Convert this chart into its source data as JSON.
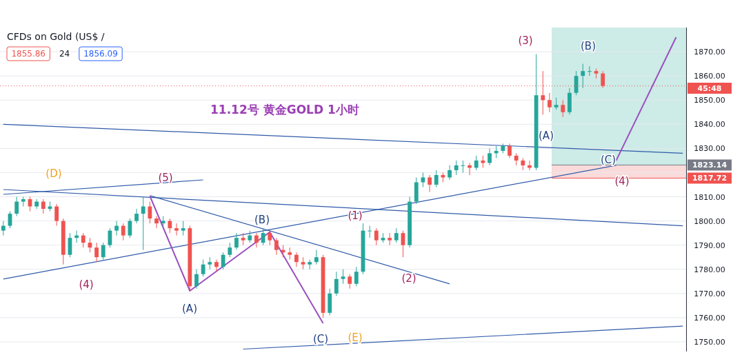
{
  "chart_data": {
    "type": "candlestick",
    "title": "11.12号  黄金GOLD 1小时",
    "subtitle": "CFDs on Gold (US$ /",
    "categories": [
      null,
      null,
      null,
      null,
      null,
      null,
      null,
      null,
      null,
      null,
      null,
      null,
      null,
      null,
      null,
      null,
      null,
      null,
      null,
      null,
      null,
      null,
      null,
      null,
      null,
      null,
      null,
      null,
      null,
      null,
      null,
      null,
      null,
      null,
      null,
      null,
      null,
      null,
      null,
      null,
      null,
      null,
      null,
      null,
      null,
      null,
      null,
      null,
      null,
      null,
      null,
      null,
      null,
      null,
      null,
      null,
      null,
      null,
      null,
      null,
      null,
      null,
      null,
      null,
      null,
      null,
      null,
      null,
      null,
      null,
      null,
      null,
      null,
      null,
      null,
      null,
      null,
      null,
      null,
      null,
      null,
      null,
      null,
      null,
      null,
      null,
      null,
      null,
      null,
      null,
      null,
      null,
      null,
      null,
      null,
      null,
      null,
      null,
      null,
      null,
      null,
      null,
      null
    ],
    "ohlc": [
      [
        1796,
        1800,
        1794,
        1798
      ],
      [
        1798,
        1804,
        1797,
        1803
      ],
      [
        1803,
        1810,
        1802,
        1808
      ],
      [
        1808,
        1810,
        1806,
        1809
      ],
      [
        1809,
        1810,
        1804,
        1806
      ],
      [
        1806,
        1809,
        1805,
        1808
      ],
      [
        1808,
        1809,
        1803,
        1805
      ],
      [
        1805,
        1808,
        1804,
        1806
      ],
      [
        1806,
        1807,
        1798,
        1800
      ],
      [
        1800,
        1801,
        1782,
        1786
      ],
      [
        1786,
        1795,
        1785,
        1793
      ],
      [
        1793,
        1796,
        1791,
        1794
      ],
      [
        1794,
        1795,
        1789,
        1791
      ],
      [
        1791,
        1793,
        1787,
        1789
      ],
      [
        1789,
        1791,
        1783,
        1785
      ],
      [
        1785,
        1791,
        1784,
        1790
      ],
      [
        1790,
        1797,
        1789,
        1796
      ],
      [
        1796,
        1800,
        1794,
        1798
      ],
      [
        1798,
        1799,
        1792,
        1794
      ],
      [
        1794,
        1801,
        1793,
        1800
      ],
      [
        1800,
        1805,
        1799,
        1803
      ],
      [
        1803,
        1810,
        1788,
        1806
      ],
      [
        1806,
        1808,
        1799,
        1801
      ],
      [
        1801,
        1802,
        1797,
        1799
      ],
      [
        1799,
        1802,
        1797,
        1800
      ],
      [
        1800,
        1801,
        1795,
        1797
      ],
      [
        1797,
        1799,
        1794,
        1796
      ],
      [
        1796,
        1800,
        1794,
        1797
      ],
      [
        1797,
        1798,
        1771,
        1773
      ],
      [
        1773,
        1780,
        1772,
        1778
      ],
      [
        1778,
        1784,
        1777,
        1782
      ],
      [
        1782,
        1785,
        1780,
        1783
      ],
      [
        1783,
        1784,
        1779,
        1781
      ],
      [
        1781,
        1787,
        1780,
        1786
      ],
      [
        1786,
        1791,
        1785,
        1789
      ],
      [
        1789,
        1795,
        1788,
        1793
      ],
      [
        1793,
        1795,
        1790,
        1792
      ],
      [
        1792,
        1796,
        1791,
        1794
      ],
      [
        1794,
        1795,
        1789,
        1791
      ],
      [
        1791,
        1797,
        1790,
        1795
      ],
      [
        1795,
        1796,
        1790,
        1792
      ],
      [
        1792,
        1793,
        1786,
        1788
      ],
      [
        1788,
        1790,
        1785,
        1787
      ],
      [
        1787,
        1789,
        1784,
        1786
      ],
      [
        1786,
        1787,
        1781,
        1783
      ],
      [
        1783,
        1785,
        1780,
        1782
      ],
      [
        1782,
        1784,
        1780,
        1783
      ],
      [
        1783,
        1788,
        1782,
        1785
      ],
      [
        1785,
        1786,
        1760,
        1762
      ],
      [
        1762,
        1772,
        1761,
        1770
      ],
      [
        1770,
        1779,
        1769,
        1776
      ],
      [
        1776,
        1780,
        1774,
        1777
      ],
      [
        1777,
        1778,
        1772,
        1774
      ],
      [
        1774,
        1781,
        1773,
        1779
      ],
      [
        1779,
        1799,
        1778,
        1796
      ],
      [
        1796,
        1798,
        1793,
        1796
      ],
      [
        1796,
        1797,
        1790,
        1792
      ],
      [
        1792,
        1795,
        1791,
        1793
      ],
      [
        1793,
        1795,
        1790,
        1792
      ],
      [
        1792,
        1797,
        1791,
        1795
      ],
      [
        1795,
        1796,
        1785,
        1790
      ],
      [
        1790,
        1810,
        1789,
        1808
      ],
      [
        1808,
        1818,
        1807,
        1816
      ],
      [
        1816,
        1820,
        1814,
        1818
      ],
      [
        1818,
        1819,
        1812,
        1815
      ],
      [
        1815,
        1821,
        1814,
        1819
      ],
      [
        1819,
        1820,
        1816,
        1818
      ],
      [
        1818,
        1823,
        1817,
        1821
      ],
      [
        1821,
        1825,
        1819,
        1823
      ],
      [
        1823,
        1825,
        1820,
        1823
      ],
      [
        1823,
        1824,
        1819,
        1822
      ],
      [
        1822,
        1827,
        1821,
        1825
      ],
      [
        1825,
        1827,
        1822,
        1824
      ],
      [
        1824,
        1830,
        1823,
        1828
      ],
      [
        1828,
        1831,
        1826,
        1829
      ],
      [
        1829,
        1832,
        1828,
        1831
      ],
      [
        1831,
        1832,
        1826,
        1827
      ],
      [
        1827,
        1828,
        1823,
        1825
      ],
      [
        1825,
        1826,
        1821,
        1823
      ],
      [
        1823,
        1825,
        1821,
        1822
      ],
      [
        1822,
        1869,
        1821,
        1852
      ],
      [
        1852,
        1862,
        1844,
        1850
      ],
      [
        1850,
        1853,
        1845,
        1847
      ],
      [
        1847,
        1851,
        1846,
        1848
      ],
      [
        1848,
        1850,
        1843,
        1845
      ],
      [
        1845,
        1855,
        1844,
        1853
      ],
      [
        1853,
        1862,
        1852,
        1860
      ],
      [
        1860,
        1865,
        1855,
        1862
      ],
      [
        1862,
        1864,
        1860,
        1862
      ],
      [
        1862,
        1863,
        1859,
        1861
      ],
      [
        1861,
        1862,
        1855,
        1855.86
      ],
      null,
      null,
      null,
      null,
      null,
      null,
      null,
      null,
      null,
      null,
      null,
      null
    ],
    "ylim": [
      1746,
      1880
    ],
    "yticks": [
      {
        "value": 1750,
        "label": "1750.00"
      },
      {
        "value": 1760,
        "label": "1760.00"
      },
      {
        "value": 1770,
        "label": "1770.00"
      },
      {
        "value": 1780,
        "label": "1780.00"
      },
      {
        "value": 1790,
        "label": "1790.00"
      },
      {
        "value": 1800,
        "label": "1800.00"
      },
      {
        "value": 1810,
        "label": "1810.00"
      },
      {
        "value": 1820,
        "label": null
      },
      {
        "value": 1830,
        "label": "1830.00"
      },
      {
        "value": 1840,
        "label": "1840.00"
      },
      {
        "value": 1850,
        "label": "1850.00"
      },
      {
        "value": 1860,
        "label": "1860.00"
      },
      {
        "value": 1870,
        "label": "1870.00"
      }
    ],
    "tick_labels": "y",
    "grid": "y",
    "series": [
      {
        "type": "line",
        "color": "#2f5aa8",
        "values": [
          1840,
          null,
          null,
          null,
          null,
          null,
          null,
          null,
          null,
          null,
          null,
          null,
          null,
          null,
          null,
          null,
          null,
          null,
          null,
          null,
          null,
          null,
          null,
          null,
          null,
          null,
          null,
          null,
          null,
          null,
          null,
          null,
          null,
          null,
          null,
          null,
          null,
          null,
          null,
          null,
          null,
          null,
          null,
          null,
          null,
          null,
          null,
          null,
          null,
          null,
          null,
          null,
          null,
          null,
          null,
          null,
          null,
          null,
          null,
          null,
          null,
          null,
          null,
          null,
          null,
          null,
          null,
          null,
          null,
          null,
          null,
          null,
          null,
          null,
          null,
          null,
          null,
          null,
          null,
          null,
          null,
          null,
          null,
          null,
          null,
          null,
          null,
          null,
          null,
          null,
          null,
          null,
          null,
          null,
          null,
          null,
          null,
          null,
          null,
          null,
          null,
          null,
          1828
        ]
      },
      {
        "type": "line",
        "color": "#2f5aa8",
        "values": [
          1813,
          null,
          null,
          null,
          null,
          null,
          null,
          null,
          null,
          null,
          null,
          null,
          null,
          null,
          null,
          null,
          null,
          null,
          null,
          null,
          null,
          null,
          null,
          null,
          null,
          null,
          null,
          null,
          null,
          null,
          null,
          null,
          null,
          null,
          null,
          null,
          null,
          null,
          null,
          null,
          null,
          null,
          null,
          null,
          null,
          null,
          null,
          null,
          null,
          null,
          null,
          null,
          null,
          null,
          null,
          null,
          null,
          null,
          null,
          null,
          null,
          null,
          null,
          null,
          null,
          null,
          null,
          null,
          null,
          null,
          null,
          null,
          null,
          null,
          null,
          null,
          null,
          null,
          null,
          null,
          null,
          null,
          null,
          null,
          null,
          null,
          null,
          null,
          null,
          null,
          null,
          null,
          null,
          null,
          null,
          null,
          null,
          null,
          null,
          null,
          null,
          null,
          1798
        ]
      },
      {
        "type": "line",
        "color": "#2f5aa8",
        "values": [
          1811,
          null,
          null,
          null,
          null,
          null,
          null,
          null,
          null,
          null,
          null,
          null,
          null,
          null,
          null,
          null,
          null,
          null,
          null,
          null,
          null,
          null,
          null,
          null,
          null,
          null,
          null,
          null,
          null,
          null,
          1817,
          null,
          null,
          null,
          null,
          null,
          null,
          null,
          null,
          null,
          null,
          null,
          null,
          null,
          null,
          null,
          null,
          null,
          null,
          null,
          null,
          null,
          null,
          null,
          null,
          null,
          null,
          null,
          null,
          null,
          null,
          null,
          null,
          null,
          null,
          null,
          null,
          null,
          null,
          null,
          null,
          null,
          null,
          null,
          null,
          null,
          null,
          null,
          null,
          null,
          null,
          null,
          null,
          null,
          null,
          null,
          null,
          null,
          null,
          null,
          null,
          null,
          null,
          null,
          null,
          null,
          null,
          null,
          null,
          null,
          null,
          null,
          null
        ]
      },
      {
        "type": "line",
        "color": "#2f5aa8",
        "values": [
          1776,
          null,
          null,
          null,
          null,
          null,
          null,
          null,
          null,
          null,
          null,
          null,
          null,
          null,
          null,
          null,
          null,
          null,
          null,
          null,
          null,
          null,
          null,
          null,
          null,
          null,
          null,
          null,
          null,
          null,
          null,
          null,
          null,
          null,
          null,
          null,
          null,
          null,
          null,
          null,
          null,
          null,
          null,
          null,
          null,
          null,
          null,
          null,
          null,
          null,
          null,
          null,
          null,
          null,
          null,
          null,
          null,
          null,
          null,
          null,
          null,
          null,
          null,
          null,
          null,
          null,
          null,
          null,
          null,
          null,
          null,
          null,
          null,
          null,
          null,
          null,
          null,
          null,
          null,
          null,
          null,
          null,
          null,
          null,
          null,
          null,
          null,
          null,
          null,
          null,
          null,
          null,
          1823,
          null,
          null,
          null,
          null,
          null,
          null,
          null,
          null,
          null,
          null
        ]
      },
      {
        "type": "line",
        "color": "#2f5aa8",
        "values": [
          null,
          null,
          null,
          null,
          null,
          null,
          null,
          null,
          null,
          null,
          null,
          null,
          null,
          null,
          null,
          null,
          null,
          null,
          null,
          null,
          null,
          null,
          1810.5,
          null,
          null,
          null,
          null,
          null,
          null,
          null,
          null,
          null,
          null,
          null,
          null,
          null,
          null,
          null,
          null,
          null,
          null,
          null,
          null,
          null,
          null,
          null,
          null,
          null,
          null,
          null,
          null,
          null,
          null,
          null,
          null,
          null,
          null,
          null,
          null,
          null,
          null,
          null,
          null,
          null,
          null,
          null,
          null,
          1774,
          null,
          null,
          null,
          null,
          null,
          null,
          null,
          null,
          null,
          null,
          null,
          null,
          null,
          null,
          null,
          null,
          null,
          null,
          null,
          null,
          null,
          null,
          null,
          null,
          null,
          null,
          null,
          null,
          null,
          null,
          null,
          null,
          null,
          null,
          null
        ]
      },
      {
        "type": "line",
        "color": "#2f5aa8",
        "values": [
          null,
          null,
          null,
          null,
          null,
          null,
          null,
          null,
          null,
          null,
          null,
          null,
          null,
          null,
          null,
          null,
          null,
          null,
          null,
          null,
          null,
          null,
          null,
          null,
          null,
          null,
          null,
          null,
          null,
          null,
          null,
          null,
          null,
          null,
          null,
          null,
          1747,
          null,
          null,
          null,
          null,
          null,
          null,
          null,
          null,
          null,
          null,
          null,
          null,
          null,
          null,
          null,
          null,
          null,
          null,
          null,
          null,
          null,
          null,
          null,
          null,
          null,
          null,
          null,
          null,
          null,
          null,
          null,
          null,
          null,
          null,
          null,
          null,
          null,
          null,
          null,
          null,
          null,
          null,
          null,
          null,
          null,
          null,
          null,
          null,
          null,
          null,
          null,
          null,
          null,
          null,
          null,
          null,
          null,
          null,
          null,
          null,
          null,
          null,
          null,
          null,
          null,
          1756.5
        ]
      },
      {
        "type": "line",
        "color": "#9b4fc0",
        "values": [
          null,
          null,
          null,
          null,
          null,
          null,
          null,
          null,
          null,
          null,
          null,
          null,
          null,
          null,
          null,
          null,
          null,
          null,
          null,
          null,
          null,
          null,
          1810.3,
          null,
          null,
          null,
          null,
          null,
          1771.1,
          null,
          null,
          null,
          null,
          null,
          null,
          null,
          null,
          null,
          null,
          null,
          1795.4,
          null,
          null,
          null,
          null,
          null,
          null,
          null,
          1757.7,
          null,
          null,
          null,
          null,
          null,
          null,
          null,
          null,
          null,
          null,
          null,
          null,
          null,
          null,
          null,
          null,
          null,
          null,
          null,
          null,
          null,
          null,
          null,
          null,
          null,
          null,
          null,
          null,
          null,
          null,
          null,
          null,
          null,
          null,
          null,
          null,
          null,
          null,
          null,
          null,
          null,
          null,
          null,
          null,
          null,
          null,
          null,
          null,
          null,
          null,
          null,
          null,
          null,
          null
        ]
      },
      {
        "type": "line",
        "color": "#9b4fc0",
        "values": [
          null,
          null,
          null,
          null,
          null,
          null,
          null,
          null,
          null,
          null,
          null,
          null,
          null,
          null,
          null,
          null,
          null,
          null,
          null,
          null,
          null,
          null,
          null,
          null,
          null,
          null,
          null,
          null,
          null,
          null,
          null,
          null,
          null,
          null,
          null,
          null,
          null,
          null,
          null,
          null,
          null,
          null,
          null,
          null,
          null,
          null,
          null,
          null,
          null,
          null,
          null,
          null,
          null,
          null,
          null,
          null,
          null,
          null,
          null,
          null,
          null,
          null,
          null,
          null,
          null,
          null,
          null,
          null,
          null,
          null,
          null,
          null,
          null,
          null,
          null,
          null,
          null,
          null,
          null,
          null,
          null,
          null,
          null,
          null,
          null,
          null,
          null,
          null,
          null,
          null,
          null,
          null,
          1825,
          null,
          null,
          null,
          null,
          null,
          null,
          null,
          null,
          1876,
          null
        ]
      }
    ],
    "bands": [
      {
        "axis": "y",
        "from": 1823.14,
        "to": 1880,
        "color": "#cdebe7"
      },
      {
        "axis": "y",
        "from": 1817.72,
        "to": 1823.14,
        "color": "#fbdada"
      }
    ],
    "ref_lines": [
      {
        "axis": "y",
        "value": 1855.86,
        "label": null,
        "color": "#ef5350",
        "line_style": "dotted"
      },
      {
        "axis": "y",
        "value": 1823.14,
        "label": "1823.14",
        "color": "#787b86"
      },
      {
        "axis": "y",
        "value": 1817.72,
        "label": "1817.72",
        "color": "#ef5350"
      }
    ],
    "annotations": [
      "1855.86",
      "24",
      "1856.09",
      "45:48",
      "(D)",
      "(5)",
      "(4)",
      "(A)",
      "(B)",
      "(C)",
      "(E)",
      "(1)",
      "(2)",
      "(3)",
      "(A)",
      "(B)",
      "(C)",
      "(4)"
    ]
  }
}
